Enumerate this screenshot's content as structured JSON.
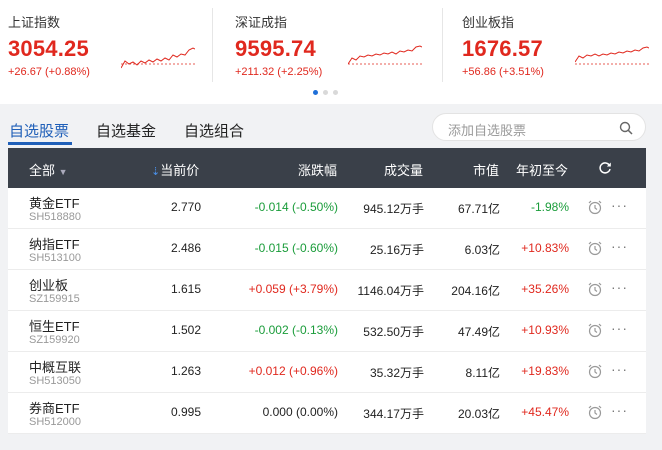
{
  "indices": [
    {
      "name": "上证指数",
      "value": "3054.25",
      "change": "+26.67 (+0.88%)"
    },
    {
      "name": "深证成指",
      "value": "9595.74",
      "change": "+211.32 (+2.25%)"
    },
    {
      "name": "创业板指",
      "value": "1676.57",
      "change": "+56.86 (+3.51%)"
    }
  ],
  "tabs": [
    "自选股票",
    "自选基金",
    "自选组合"
  ],
  "search": {
    "placeholder": "添加自选股票",
    "icon": "search-icon"
  },
  "table": {
    "headers": {
      "all": "全部",
      "price": "当前价",
      "change": "涨跌幅",
      "volume": "成交量",
      "market_cap": "市值",
      "ytd": "年初至今"
    },
    "rows": [
      {
        "name": "黄金ETF",
        "code": "SH518880",
        "price": "2.770",
        "change": "-0.014 (-0.50%)",
        "volume": "945.12万手",
        "market_cap": "67.71亿",
        "ytd": "-1.98%",
        "change_dir": "down",
        "ytd_dir": "down"
      },
      {
        "name": "纳指ETF",
        "code": "SH513100",
        "price": "2.486",
        "change": "-0.015 (-0.60%)",
        "volume": "25.16万手",
        "market_cap": "6.03亿",
        "ytd": "+10.83%",
        "change_dir": "down",
        "ytd_dir": "up"
      },
      {
        "name": "创业板",
        "code": "SZ159915",
        "price": "1.615",
        "change": "+0.059 (+3.79%)",
        "volume": "1146.04万手",
        "market_cap": "204.16亿",
        "ytd": "+35.26%",
        "change_dir": "up",
        "ytd_dir": "up"
      },
      {
        "name": "恒生ETF",
        "code": "SZ159920",
        "price": "1.502",
        "change": "-0.002 (-0.13%)",
        "volume": "532.50万手",
        "market_cap": "47.49亿",
        "ytd": "+10.93%",
        "change_dir": "down",
        "ytd_dir": "up"
      },
      {
        "name": "中概互联",
        "code": "SH513050",
        "price": "1.263",
        "change": "+0.012 (+0.96%)",
        "volume": "35.32万手",
        "market_cap": "8.11亿",
        "ytd": "+19.83%",
        "change_dir": "up",
        "ytd_dir": "up"
      },
      {
        "name": "券商ETF",
        "code": "SH512000",
        "price": "0.995",
        "change": "0.000 (0.00%)",
        "volume": "344.17万手",
        "market_cap": "20.03亿",
        "ytd": "+45.47%",
        "change_dir": "flat",
        "ytd_dir": "up"
      }
    ]
  },
  "colors": {
    "up": "#e0281e",
    "down": "#1a9c3a",
    "accent": "#1f5fb8",
    "header_bg": "#3a4049"
  }
}
